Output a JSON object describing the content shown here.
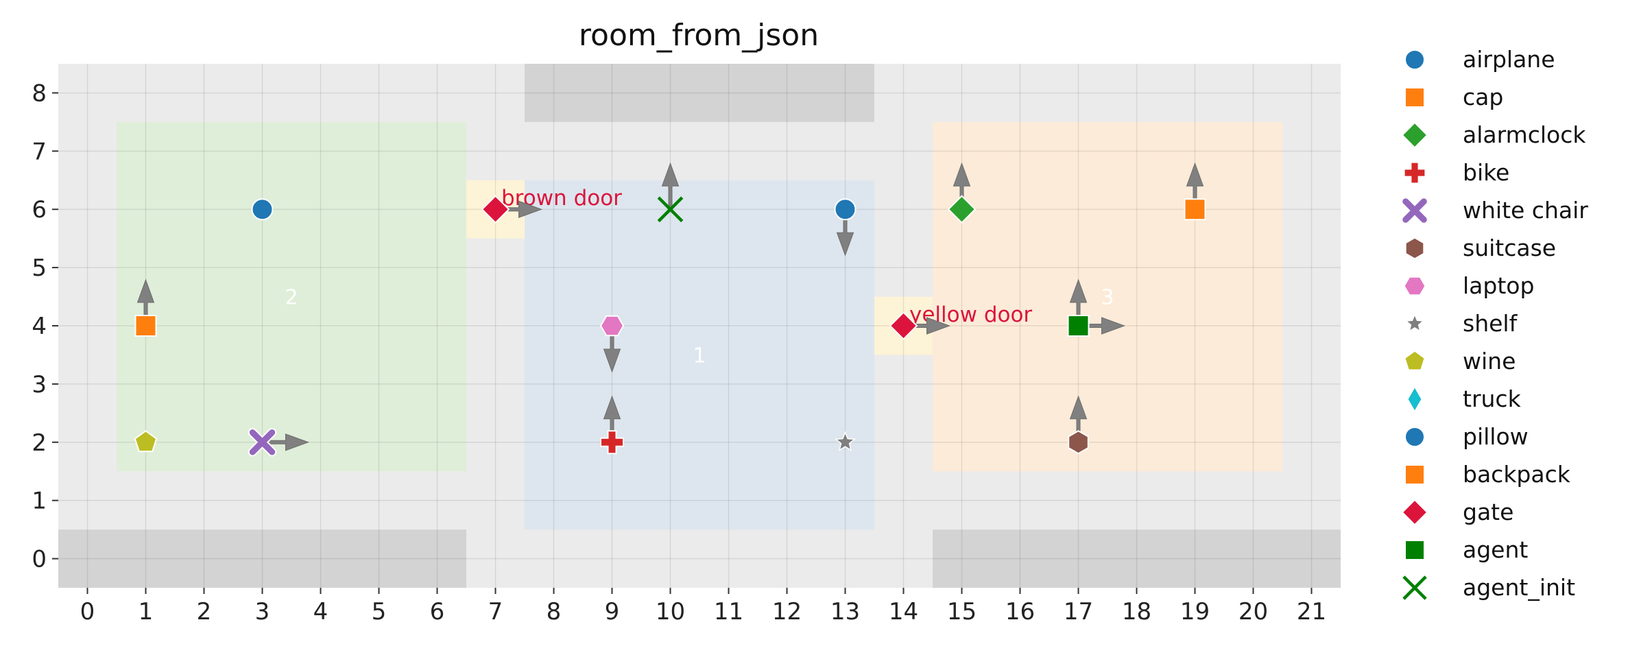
{
  "chart_data": {
    "type": "scatter",
    "title": "room_from_json",
    "xlabel": "",
    "ylabel": "",
    "xlim": [
      -0.5,
      21.5
    ],
    "ylim": [
      -0.5,
      8.5
    ],
    "xticks": [
      "0",
      "1",
      "2",
      "3",
      "4",
      "5",
      "6",
      "7",
      "8",
      "9",
      "10",
      "11",
      "12",
      "13",
      "14",
      "15",
      "16",
      "17",
      "18",
      "19",
      "20",
      "21"
    ],
    "yticks": [
      "0",
      "1",
      "2",
      "3",
      "4",
      "5",
      "6",
      "7",
      "8"
    ],
    "grid": true,
    "background": "#ebebeb",
    "legend_position": "outside-right",
    "walls": [
      {
        "x0": -0.5,
        "x1": 6.5,
        "y0": -0.5,
        "y1": 0.5
      },
      {
        "x0": 14.5,
        "x1": 21.5,
        "y0": -0.5,
        "y1": 0.5
      },
      {
        "x0": 7.5,
        "x1": 13.5,
        "y0": 7.5,
        "y1": 8.5
      }
    ],
    "rooms": [
      {
        "label": "2",
        "x0": 0.5,
        "x1": 6.5,
        "y0": 1.5,
        "y1": 7.5,
        "color": "#dfeed9",
        "label_x": 3.5,
        "label_y": 4.5
      },
      {
        "label": "1",
        "x0": 7.5,
        "x1": 13.5,
        "y0": 0.5,
        "y1": 6.5,
        "color": "#dde6ee",
        "label_x": 10.5,
        "label_y": 3.5
      },
      {
        "label": "3",
        "x0": 14.5,
        "x1": 20.5,
        "y0": 1.5,
        "y1": 7.5,
        "color": "#fcebd8",
        "label_x": 17.5,
        "label_y": 4.5
      }
    ],
    "door_cells": [
      {
        "label": "brown door",
        "x0": 6.5,
        "x1": 7.5,
        "y0": 5.5,
        "y1": 6.5,
        "color": "#fdf3d6",
        "label_x": 7.1,
        "label_y": 6.2
      },
      {
        "label": "yellow door",
        "x0": 13.5,
        "x1": 14.5,
        "y0": 3.5,
        "y1": 4.5,
        "color": "#fdf3d6",
        "label_x": 14.1,
        "label_y": 4.2
      }
    ],
    "series": [
      {
        "name": "airplane",
        "marker": "circle",
        "color": "#1f77b4",
        "points": [
          [
            3,
            6
          ]
        ]
      },
      {
        "name": "cap",
        "marker": "square",
        "color": "#ff7f0e",
        "points": [
          [
            1,
            4
          ]
        ]
      },
      {
        "name": "alarmclock",
        "marker": "diamond",
        "color": "#2ca02c",
        "points": [
          [
            15,
            6
          ]
        ]
      },
      {
        "name": "bike",
        "marker": "plus",
        "color": "#d62728",
        "points": [
          [
            9,
            2
          ]
        ]
      },
      {
        "name": "white chair",
        "marker": "x",
        "color": "#9467bd",
        "points": [
          [
            3,
            2
          ]
        ]
      },
      {
        "name": "suitcase",
        "marker": "hexagon",
        "color": "#8c564b",
        "points": [
          [
            17,
            2
          ]
        ]
      },
      {
        "name": "laptop",
        "marker": "hexagon-flat",
        "color": "#e377c2",
        "points": [
          [
            9,
            4
          ]
        ]
      },
      {
        "name": "shelf",
        "marker": "star",
        "color": "#7f7f7f",
        "points": [
          [
            13,
            2
          ]
        ]
      },
      {
        "name": "wine",
        "marker": "pentagon",
        "color": "#bcbd22",
        "points": [
          [
            1,
            2
          ]
        ]
      },
      {
        "name": "truck",
        "marker": "thin-diamond",
        "color": "#17becf",
        "points": []
      },
      {
        "name": "pillow",
        "marker": "circle",
        "color": "#1f77b4",
        "points": [
          [
            13,
            6
          ]
        ]
      },
      {
        "name": "backpack",
        "marker": "square",
        "color": "#ff7f0e",
        "points": [
          [
            19,
            6
          ]
        ]
      },
      {
        "name": "gate",
        "marker": "diamond",
        "color": "#dc143c",
        "points": [
          [
            7,
            6
          ],
          [
            14,
            4
          ]
        ]
      },
      {
        "name": "agent",
        "marker": "square",
        "color": "#008000",
        "points": [
          [
            17,
            4
          ]
        ]
      },
      {
        "name": "agent_init",
        "marker": "x-thin",
        "color": "#008000",
        "points": [
          [
            10,
            6
          ]
        ]
      }
    ],
    "arrows": [
      {
        "x": 1,
        "y": 4,
        "dir": "up"
      },
      {
        "x": 3,
        "y": 2,
        "dir": "right"
      },
      {
        "x": 7,
        "y": 6,
        "dir": "right"
      },
      {
        "x": 9,
        "y": 4,
        "dir": "down"
      },
      {
        "x": 9,
        "y": 2,
        "dir": "up"
      },
      {
        "x": 10,
        "y": 6,
        "dir": "up"
      },
      {
        "x": 13,
        "y": 6,
        "dir": "down"
      },
      {
        "x": 14,
        "y": 4,
        "dir": "right"
      },
      {
        "x": 15,
        "y": 6,
        "dir": "up"
      },
      {
        "x": 17,
        "y": 4,
        "dir": "up"
      },
      {
        "x": 17,
        "y": 4,
        "dir": "right"
      },
      {
        "x": 17,
        "y": 2,
        "dir": "up"
      },
      {
        "x": 19,
        "y": 6,
        "dir": "up"
      }
    ]
  }
}
